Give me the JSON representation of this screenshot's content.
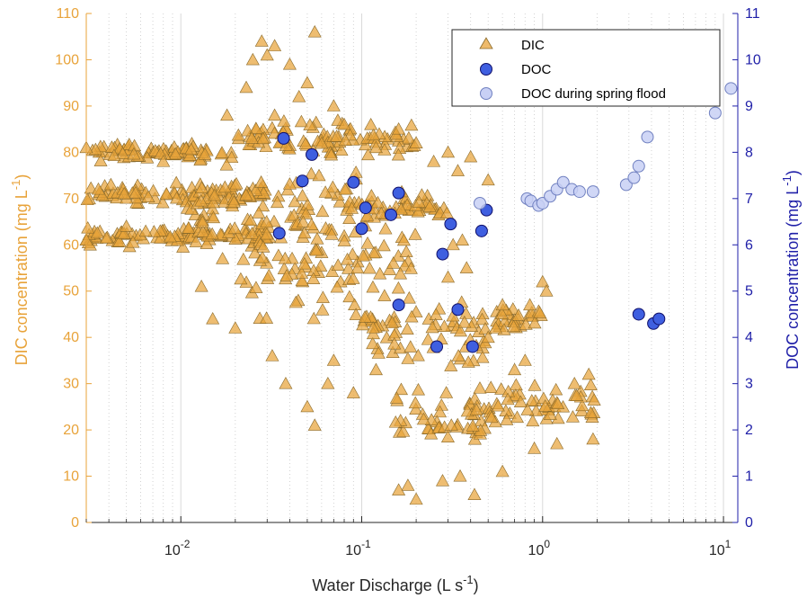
{
  "chart_data": {
    "type": "scatter",
    "xlabel": "Water Discharge (L s",
    "xlabel_sup": "-1",
    "xlabel_tail": ")",
    "ylabel_left": "DIC concentration (mg L",
    "ylabel_left_sup": "-1",
    "ylabel_left_tail": ")",
    "ylabel_right": "DOC concentration (mg L",
    "ylabel_right_sup": "-1",
    "ylabel_right_tail": ")",
    "x_scale": "log",
    "xlim": [
      0.003,
      12
    ],
    "x_ticks": [
      {
        "value": 0.01,
        "base": "10",
        "exp": "-2"
      },
      {
        "value": 0.1,
        "base": "10",
        "exp": "-1"
      },
      {
        "value": 1,
        "base": "10",
        "exp": "0"
      },
      {
        "value": 10,
        "base": "10",
        "exp": "1"
      }
    ],
    "ylim_left": [
      0,
      110
    ],
    "yticks_left": [
      "0",
      "10",
      "20",
      "30",
      "40",
      "50",
      "60",
      "70",
      "80",
      "90",
      "100",
      "110"
    ],
    "ylim_right": [
      0,
      11
    ],
    "yticks_right": [
      "0",
      "1",
      "2",
      "3",
      "4",
      "5",
      "6",
      "7",
      "8",
      "9",
      "10",
      "11"
    ],
    "grid": true,
    "legend_position": "top-right",
    "colors": {
      "dic": "#E8A33A",
      "dic_edge": "#8A6A2A",
      "doc": "#3F5FE0",
      "doc_edge": "#10106A",
      "doc_spring": "#C8D0F5",
      "doc_spring_edge": "#7080C0",
      "left_axis": "#E8A33A",
      "right_axis": "#1F1FA8"
    },
    "series": [
      {
        "name": "DIC",
        "axis": "left",
        "marker": "triangle",
        "note_dense_cloud": "approximately 2000 overlapping points",
        "clusters": [
          {
            "x_range": [
              0.003,
              0.02
            ],
            "y_center": 80,
            "y_spread": 2.5
          },
          {
            "x_range": [
              0.003,
              0.03
            ],
            "y_center": 71,
            "y_spread": 3
          },
          {
            "x_range": [
              0.003,
              0.03
            ],
            "y_center": 62,
            "y_spread": 3
          },
          {
            "x_range": [
              0.01,
              0.1
            ],
            "y_center": 68,
            "y_spread": 12
          },
          {
            "x_range": [
              0.02,
              0.2
            ],
            "y_center": 55,
            "y_spread": 15
          },
          {
            "x_range": [
              0.02,
              0.2
            ],
            "y_center": 83,
            "y_spread": 5
          },
          {
            "x_range": [
              0.1,
              0.3
            ],
            "y_center": 68,
            "y_spread": 4
          },
          {
            "x_range": [
              0.1,
              0.5
            ],
            "y_center": 40,
            "y_spread": 10
          },
          {
            "x_range": [
              0.15,
              0.5
            ],
            "y_center": 22,
            "y_spread": 9
          },
          {
            "x_range": [
              0.5,
              2.0
            ],
            "y_center": 25,
            "y_spread": 7
          },
          {
            "x_range": [
              0.5,
              1.0
            ],
            "y_center": 44,
            "y_spread": 4
          }
        ],
        "points": [
          {
            "x": 0.028,
            "y": 104
          },
          {
            "x": 0.033,
            "y": 103
          },
          {
            "x": 0.055,
            "y": 106
          },
          {
            "x": 0.025,
            "y": 100
          },
          {
            "x": 0.03,
            "y": 101
          },
          {
            "x": 0.04,
            "y": 99
          },
          {
            "x": 0.05,
            "y": 95
          },
          {
            "x": 0.023,
            "y": 94
          },
          {
            "x": 0.018,
            "y": 88
          },
          {
            "x": 0.033,
            "y": 88
          },
          {
            "x": 0.045,
            "y": 92
          },
          {
            "x": 0.07,
            "y": 90
          },
          {
            "x": 0.08,
            "y": 86
          },
          {
            "x": 0.16,
            "y": 85
          },
          {
            "x": 0.2,
            "y": 82
          },
          {
            "x": 0.25,
            "y": 78
          },
          {
            "x": 0.34,
            "y": 76
          },
          {
            "x": 0.5,
            "y": 74
          },
          {
            "x": 0.4,
            "y": 79
          },
          {
            "x": 0.3,
            "y": 80
          },
          {
            "x": 0.12,
            "y": 81
          },
          {
            "x": 0.003,
            "y": 81
          },
          {
            "x": 0.003,
            "y": 61
          },
          {
            "x": 0.0035,
            "y": 72
          },
          {
            "x": 0.005,
            "y": 64
          },
          {
            "x": 0.008,
            "y": 78
          },
          {
            "x": 0.032,
            "y": 36
          },
          {
            "x": 0.055,
            "y": 21
          },
          {
            "x": 0.05,
            "y": 25
          },
          {
            "x": 0.038,
            "y": 30
          },
          {
            "x": 0.07,
            "y": 35
          },
          {
            "x": 0.065,
            "y": 30
          },
          {
            "x": 0.09,
            "y": 28
          },
          {
            "x": 0.12,
            "y": 33
          },
          {
            "x": 0.015,
            "y": 44
          },
          {
            "x": 0.02,
            "y": 42
          },
          {
            "x": 0.013,
            "y": 51
          },
          {
            "x": 0.017,
            "y": 57
          },
          {
            "x": 0.2,
            "y": 5
          },
          {
            "x": 0.18,
            "y": 8
          },
          {
            "x": 0.42,
            "y": 6
          },
          {
            "x": 0.16,
            "y": 7
          },
          {
            "x": 0.28,
            "y": 9
          },
          {
            "x": 0.35,
            "y": 10
          },
          {
            "x": 0.6,
            "y": 11
          },
          {
            "x": 0.9,
            "y": 16
          },
          {
            "x": 1.2,
            "y": 17
          },
          {
            "x": 1.9,
            "y": 18
          },
          {
            "x": 1.8,
            "y": 32
          },
          {
            "x": 1.5,
            "y": 30
          },
          {
            "x": 1.0,
            "y": 52
          },
          {
            "x": 1.05,
            "y": 50
          },
          {
            "x": 0.85,
            "y": 47
          },
          {
            "x": 0.6,
            "y": 47
          },
          {
            "x": 0.5,
            "y": 40
          },
          {
            "x": 0.55,
            "y": 42
          },
          {
            "x": 0.3,
            "y": 53
          },
          {
            "x": 0.38,
            "y": 55
          },
          {
            "x": 0.36,
            "y": 61
          },
          {
            "x": 0.32,
            "y": 60
          },
          {
            "x": 0.45,
            "y": 29
          },
          {
            "x": 0.7,
            "y": 33
          },
          {
            "x": 0.8,
            "y": 35
          }
        ]
      },
      {
        "name": "DOC",
        "axis": "right",
        "marker": "circle",
        "points": [
          {
            "x": 0.037,
            "y": 8.3
          },
          {
            "x": 0.053,
            "y": 7.95
          },
          {
            "x": 0.047,
            "y": 7.38
          },
          {
            "x": 0.035,
            "y": 6.25
          },
          {
            "x": 0.09,
            "y": 7.35
          },
          {
            "x": 0.105,
            "y": 6.8
          },
          {
            "x": 0.1,
            "y": 6.35
          },
          {
            "x": 0.145,
            "y": 6.65
          },
          {
            "x": 0.16,
            "y": 7.12
          },
          {
            "x": 0.31,
            "y": 6.45
          },
          {
            "x": 0.28,
            "y": 5.8
          },
          {
            "x": 0.49,
            "y": 6.75
          },
          {
            "x": 0.46,
            "y": 6.3
          },
          {
            "x": 0.16,
            "y": 4.7
          },
          {
            "x": 0.34,
            "y": 4.6
          },
          {
            "x": 0.26,
            "y": 3.8
          },
          {
            "x": 0.41,
            "y": 3.8
          },
          {
            "x": 3.4,
            "y": 4.5
          },
          {
            "x": 4.1,
            "y": 4.3
          },
          {
            "x": 4.4,
            "y": 4.4
          }
        ]
      },
      {
        "name": "DOC during spring flood",
        "axis": "right",
        "marker": "circle",
        "points": [
          {
            "x": 0.45,
            "y": 6.9
          },
          {
            "x": 0.82,
            "y": 7.0
          },
          {
            "x": 0.86,
            "y": 6.95
          },
          {
            "x": 0.95,
            "y": 6.85
          },
          {
            "x": 1.0,
            "y": 6.9
          },
          {
            "x": 1.1,
            "y": 7.05
          },
          {
            "x": 1.2,
            "y": 7.2
          },
          {
            "x": 1.3,
            "y": 7.35
          },
          {
            "x": 1.45,
            "y": 7.2
          },
          {
            "x": 1.6,
            "y": 7.15
          },
          {
            "x": 1.9,
            "y": 7.15
          },
          {
            "x": 2.9,
            "y": 7.3
          },
          {
            "x": 3.2,
            "y": 7.45
          },
          {
            "x": 3.4,
            "y": 7.7
          },
          {
            "x": 3.8,
            "y": 8.33
          },
          {
            "x": 9.0,
            "y": 8.85
          },
          {
            "x": 11.0,
            "y": 9.38
          }
        ]
      }
    ]
  }
}
